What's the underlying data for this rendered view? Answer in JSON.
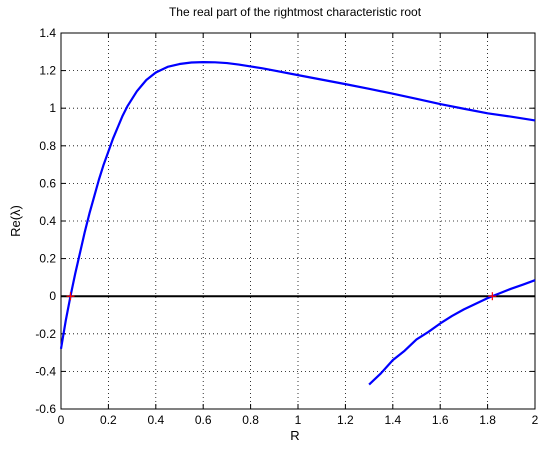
{
  "chart_data": {
    "type": "line",
    "title": "The real part of the rightmost characteristic root",
    "xlabel": "R",
    "ylabel": "Re(λ)",
    "xlim": [
      0,
      2
    ],
    "ylim": [
      -0.6,
      1.4
    ],
    "x_ticks": [
      0,
      0.2,
      0.4,
      0.6,
      0.8,
      1,
      1.2,
      1.4,
      1.6,
      1.8,
      2
    ],
    "x_tick_labels": [
      "0",
      "0.2",
      "0.4",
      "0.6",
      "0.8",
      "1",
      "1.2",
      "1.4",
      "1.6",
      "1.8",
      "2"
    ],
    "y_ticks": [
      -0.6,
      -0.4,
      -0.2,
      0,
      0.2,
      0.4,
      0.6,
      0.8,
      1,
      1.2,
      1.4
    ],
    "y_tick_labels": [
      "-0.6",
      "-0.4",
      "-0.2",
      "0",
      "0.2",
      "0.4",
      "0.6",
      "0.8",
      "1",
      "1.2",
      "1.4"
    ],
    "grid": true,
    "series": [
      {
        "color": "#0000ff",
        "points": [
          [
            0,
            -0.28
          ],
          [
            0.02,
            -0.13
          ],
          [
            0.04,
            0.0
          ],
          [
            0.06,
            0.12
          ],
          [
            0.08,
            0.23
          ],
          [
            0.1,
            0.34
          ],
          [
            0.12,
            0.44
          ],
          [
            0.14,
            0.53
          ],
          [
            0.16,
            0.62
          ],
          [
            0.18,
            0.7
          ],
          [
            0.2,
            0.77
          ],
          [
            0.22,
            0.84
          ],
          [
            0.24,
            0.9
          ],
          [
            0.26,
            0.96
          ],
          [
            0.28,
            1.01
          ],
          [
            0.3,
            1.05
          ],
          [
            0.32,
            1.09
          ],
          [
            0.34,
            1.12
          ],
          [
            0.36,
            1.15
          ],
          [
            0.38,
            1.17
          ],
          [
            0.4,
            1.19
          ],
          [
            0.45,
            1.22
          ],
          [
            0.5,
            1.235
          ],
          [
            0.55,
            1.243
          ],
          [
            0.6,
            1.245
          ],
          [
            0.65,
            1.244
          ],
          [
            0.7,
            1.24
          ],
          [
            0.75,
            1.232
          ],
          [
            0.8,
            1.222
          ],
          [
            0.85,
            1.212
          ],
          [
            0.9,
            1.2
          ],
          [
            1.0,
            1.176
          ],
          [
            1.1,
            1.152
          ],
          [
            1.2,
            1.128
          ],
          [
            1.3,
            1.103
          ],
          [
            1.4,
            1.077
          ],
          [
            1.5,
            1.05
          ],
          [
            1.6,
            1.022
          ],
          [
            1.7,
            0.997
          ],
          [
            1.8,
            0.973
          ],
          [
            1.9,
            0.955
          ],
          [
            2.0,
            0.935
          ]
        ]
      },
      {
        "color": "#0000ff",
        "points": [
          [
            1.3,
            -0.47
          ],
          [
            1.35,
            -0.41
          ],
          [
            1.4,
            -0.34
          ],
          [
            1.45,
            -0.29
          ],
          [
            1.5,
            -0.23
          ],
          [
            1.55,
            -0.19
          ],
          [
            1.6,
            -0.145
          ],
          [
            1.65,
            -0.105
          ],
          [
            1.7,
            -0.07
          ],
          [
            1.75,
            -0.04
          ],
          [
            1.8,
            -0.01
          ],
          [
            1.82,
            0.0
          ],
          [
            1.85,
            0.015
          ],
          [
            1.9,
            0.04
          ],
          [
            1.95,
            0.062
          ],
          [
            2.0,
            0.085
          ]
        ]
      }
    ],
    "reference_line": {
      "y": 0,
      "color": "#000000"
    },
    "markers": [
      {
        "x": 0.04,
        "y": 0,
        "color": "#ff0000"
      },
      {
        "x": 1.82,
        "y": 0,
        "color": "#ff0000"
      }
    ]
  }
}
